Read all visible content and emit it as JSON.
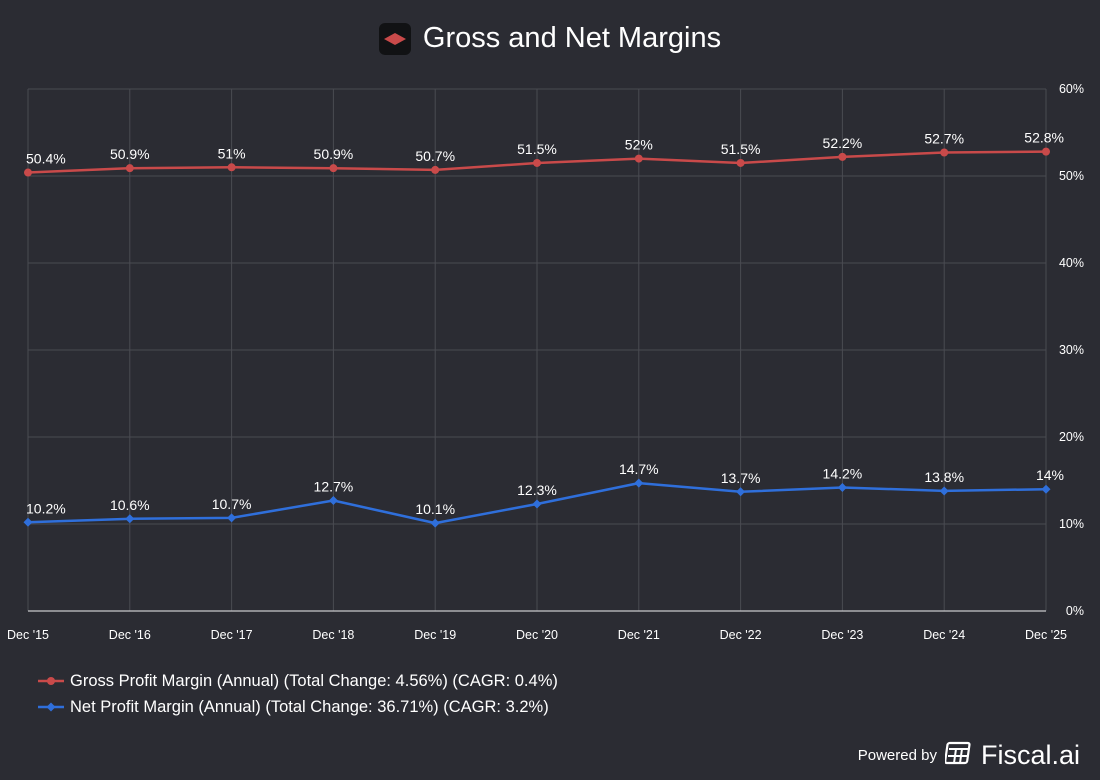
{
  "title": "Gross and Net Margins",
  "colors": {
    "background": "#2b2c33",
    "grid": "#4a4b52",
    "gross": "#c94a4a",
    "net": "#2f6fdb",
    "text": "#ffffff"
  },
  "icons": {
    "title_logo": "red-diamond-logo-icon",
    "brand_logo": "fiscal-ai-logo-icon"
  },
  "chart_data": {
    "type": "line",
    "title": "Gross and Net Margins",
    "categories": [
      "Dec '15",
      "Dec '16",
      "Dec '17",
      "Dec '18",
      "Dec '19",
      "Dec '20",
      "Dec '21",
      "Dec '22",
      "Dec '23",
      "Dec '24",
      "Dec '25"
    ],
    "series": [
      {
        "name": "Gross Profit Margin (Annual) (Total Change: 4.56%) (CAGR: 0.4%)",
        "color": "#c94a4a",
        "marker": "circle",
        "values": [
          50.4,
          50.9,
          51,
          50.9,
          50.7,
          51.5,
          52,
          51.5,
          52.2,
          52.7,
          52.8
        ],
        "labels": [
          "50.4%",
          "50.9%",
          "51%",
          "50.9%",
          "50.7%",
          "51.5%",
          "52%",
          "51.5%",
          "52.2%",
          "52.7%",
          "52.8%"
        ]
      },
      {
        "name": "Net Profit Margin (Annual) (Total Change: 36.71%) (CAGR: 3.2%)",
        "color": "#2f6fdb",
        "marker": "diamond",
        "values": [
          10.2,
          10.6,
          10.7,
          12.7,
          10.1,
          12.3,
          14.7,
          13.7,
          14.2,
          13.8,
          14
        ],
        "labels": [
          "10.2%",
          "10.6%",
          "10.7%",
          "12.7%",
          "10.1%",
          "12.3%",
          "14.7%",
          "13.7%",
          "14.2%",
          "13.8%",
          "14%"
        ]
      }
    ],
    "y_axis": {
      "side": "right",
      "ylim": [
        0,
        60
      ],
      "ticks": [
        0,
        10,
        20,
        30,
        40,
        50,
        60
      ],
      "tick_labels": [
        "0%",
        "10%",
        "20%",
        "30%",
        "40%",
        "50%",
        "60%"
      ]
    },
    "grid": true,
    "legend_position": "bottom-left"
  },
  "footer": {
    "powered_by": "Powered by",
    "brand": "Fiscal.ai"
  }
}
